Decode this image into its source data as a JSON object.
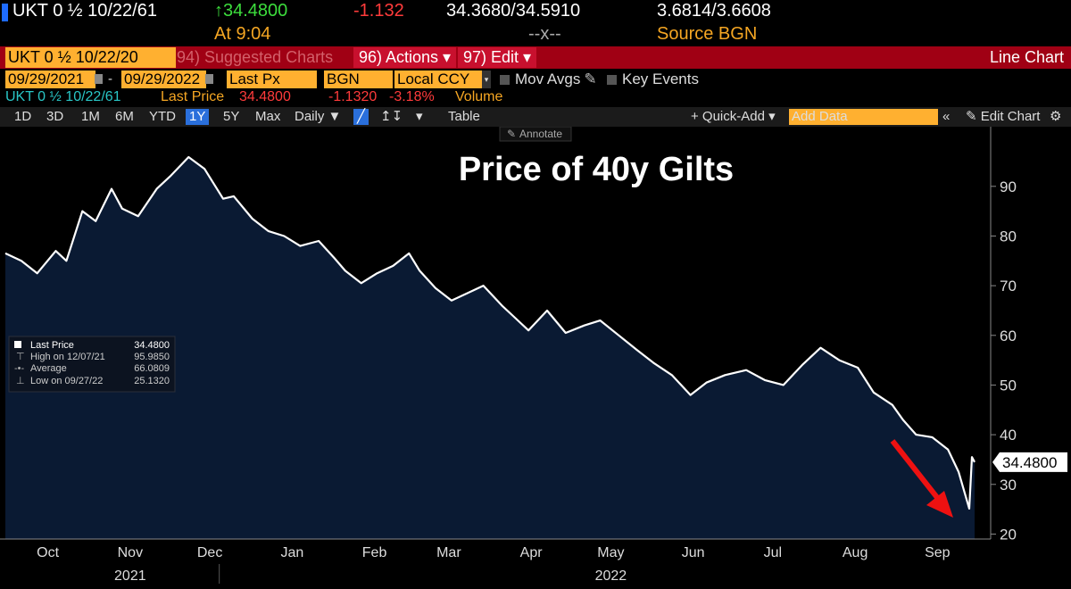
{
  "header": {
    "ticker": "UKT 0 ½ 10/22/61",
    "last_price": "↑34.4800",
    "change": "-1.132",
    "bid_ask": "34.3680/34.5910",
    "yields": "3.6814/3.6608",
    "time": "At 9:04",
    "spread": "--x--",
    "source": "Source BGN"
  },
  "function_bar": {
    "ticker_box": "UKT 0 ½ 10/22/20",
    "suggested": "94) Suggested Charts",
    "actions": "96) Actions ▾",
    "edit": "97) Edit ▾",
    "chart_type": "Line Chart"
  },
  "options_row": {
    "start_date": "09/29/2021",
    "end_date": "09/29/2022",
    "field": "Last Px",
    "source": "BGN",
    "currency": "Local CCY",
    "mov_avgs": "Mov Avgs",
    "key_events": "Key Events"
  },
  "legend_row": {
    "security": "UKT 0 ½ 10/22/61",
    "field_label": "Last Price",
    "value": "34.4800",
    "change": "-1.1320",
    "pct": "-3.18%",
    "volume": "Volume"
  },
  "toolbar": {
    "periods": [
      "1D",
      "3D",
      "1M",
      "6M",
      "YTD",
      "1Y",
      "5Y",
      "Max"
    ],
    "selected_period": "1Y",
    "frequency": "Daily ▼",
    "table": "Table",
    "quick_add": "+ Quick-Add ▾",
    "add_data_placeholder": "Add Data",
    "edit_chart": "Edit Chart",
    "annotate": "Annotate"
  },
  "stats_box": {
    "last_label": "Last Price",
    "last_value": "34.4800",
    "high_label": "High on 12/07/21",
    "high_value": "95.9850",
    "avg_label": "Average",
    "avg_value": "66.0809",
    "low_label": "Low on 09/27/22",
    "low_value": "25.1320"
  },
  "colors": {
    "line": "#ffffff",
    "fill": "#0a1a33",
    "accent": "#ffb030",
    "arrow": "#ee1111",
    "function_bar": "#a00014"
  },
  "chart_data": {
    "type": "area",
    "title": "Price of 40y Gilts",
    "last_label": "34.4800",
    "ylim": [
      19,
      102
    ],
    "yticks": [
      20,
      30,
      40,
      50,
      60,
      70,
      80,
      90
    ],
    "x_start": "2021-09-29",
    "x_end": "2022-09-29",
    "months": [
      {
        "label": "Oct",
        "date": "2021-10-15"
      },
      {
        "label": "Nov",
        "date": "2021-11-15"
      },
      {
        "label": "Dec",
        "date": "2021-12-15"
      },
      {
        "label": "Jan",
        "date": "2022-01-15"
      },
      {
        "label": "Feb",
        "date": "2022-02-15"
      },
      {
        "label": "Mar",
        "date": "2022-03-15"
      },
      {
        "label": "Apr",
        "date": "2022-04-15"
      },
      {
        "label": "May",
        "date": "2022-05-15"
      },
      {
        "label": "Jun",
        "date": "2022-06-15"
      },
      {
        "label": "Jul",
        "date": "2022-07-15"
      },
      {
        "label": "Aug",
        "date": "2022-08-15"
      },
      {
        "label": "Sep",
        "date": "2022-09-15"
      }
    ],
    "years": [
      {
        "label": "2021",
        "date": "2021-11-15"
      },
      {
        "label": "2022",
        "date": "2022-05-15"
      }
    ],
    "year_divider_date": "2022-01-01",
    "points": [
      [
        "2021-09-29",
        76.5
      ],
      [
        "2021-10-05",
        75.0
      ],
      [
        "2021-10-11",
        72.5
      ],
      [
        "2021-10-18",
        77.0
      ],
      [
        "2021-10-22",
        75.0
      ],
      [
        "2021-10-28",
        85.0
      ],
      [
        "2021-11-02",
        83.0
      ],
      [
        "2021-11-08",
        89.5
      ],
      [
        "2021-11-12",
        85.5
      ],
      [
        "2021-11-18",
        84.0
      ],
      [
        "2021-11-25",
        89.5
      ],
      [
        "2021-11-30",
        92.0
      ],
      [
        "2021-12-07",
        95.9
      ],
      [
        "2021-12-13",
        93.5
      ],
      [
        "2021-12-20",
        87.5
      ],
      [
        "2021-12-24",
        88.0
      ],
      [
        "2021-12-31",
        83.5
      ],
      [
        "2022-01-06",
        81.0
      ],
      [
        "2022-01-12",
        80.0
      ],
      [
        "2022-01-18",
        78.0
      ],
      [
        "2022-01-25",
        79.0
      ],
      [
        "2022-01-31",
        75.5
      ],
      [
        "2022-02-04",
        73.0
      ],
      [
        "2022-02-10",
        70.5
      ],
      [
        "2022-02-16",
        72.5
      ],
      [
        "2022-02-22",
        74.0
      ],
      [
        "2022-02-28",
        76.5
      ],
      [
        "2022-03-04",
        73.0
      ],
      [
        "2022-03-10",
        69.5
      ],
      [
        "2022-03-16",
        67.0
      ],
      [
        "2022-03-22",
        68.5
      ],
      [
        "2022-03-28",
        70.0
      ],
      [
        "2022-04-04",
        66.0
      ],
      [
        "2022-04-08",
        64.0
      ],
      [
        "2022-04-14",
        61.0
      ],
      [
        "2022-04-21",
        65.0
      ],
      [
        "2022-04-28",
        60.5
      ],
      [
        "2022-05-05",
        62.0
      ],
      [
        "2022-05-11",
        63.0
      ],
      [
        "2022-05-18",
        60.0
      ],
      [
        "2022-05-25",
        57.0
      ],
      [
        "2022-05-31",
        54.5
      ],
      [
        "2022-06-07",
        52.0
      ],
      [
        "2022-06-14",
        48.0
      ],
      [
        "2022-06-20",
        50.5
      ],
      [
        "2022-06-27",
        52.0
      ],
      [
        "2022-07-05",
        53.0
      ],
      [
        "2022-07-12",
        51.0
      ],
      [
        "2022-07-19",
        50.0
      ],
      [
        "2022-07-26",
        54.0
      ],
      [
        "2022-08-02",
        57.5
      ],
      [
        "2022-08-09",
        55.0
      ],
      [
        "2022-08-16",
        53.5
      ],
      [
        "2022-08-22",
        48.5
      ],
      [
        "2022-08-29",
        46.0
      ],
      [
        "2022-09-02",
        43.0
      ],
      [
        "2022-09-07",
        40.0
      ],
      [
        "2022-09-13",
        39.5
      ],
      [
        "2022-09-19",
        37.0
      ],
      [
        "2022-09-23",
        32.5
      ],
      [
        "2022-09-27",
        25.13
      ],
      [
        "2022-09-28",
        35.5
      ],
      [
        "2022-09-29",
        34.48
      ]
    ]
  }
}
